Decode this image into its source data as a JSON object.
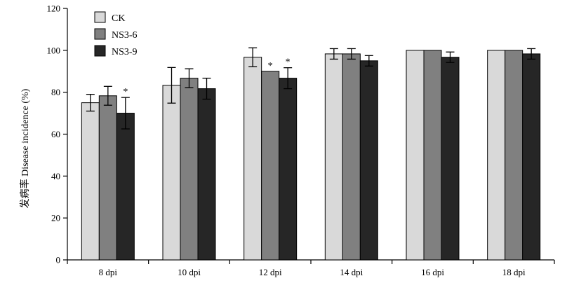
{
  "chart_data": {
    "type": "bar",
    "title": "",
    "xlabel": "",
    "ylabel": "发病率 Disease incidence (%)",
    "ylim": [
      0,
      120
    ],
    "yticks": [
      0,
      20,
      40,
      60,
      80,
      100,
      120
    ],
    "grid": false,
    "legend": "top-left",
    "categories": [
      "8 dpi",
      "10 dpi",
      "12 dpi",
      "14 dpi",
      "16 dpi",
      "18 dpi"
    ],
    "series": [
      {
        "name": "CK",
        "color": "#d9d9d9",
        "values": [
          75,
          83.3,
          96.7,
          98.3,
          100,
          100
        ],
        "errors": [
          4,
          8.5,
          4.5,
          2.5,
          0,
          0
        ],
        "sig": [
          "",
          "",
          "",
          "",
          "",
          ""
        ]
      },
      {
        "name": "NS3-6",
        "color": "#808080",
        "values": [
          78.3,
          86.7,
          90,
          98.3,
          100,
          100
        ],
        "errors": [
          4.5,
          4.5,
          0,
          2.5,
          0,
          0
        ],
        "sig": [
          "",
          "",
          "*",
          "",
          "",
          ""
        ]
      },
      {
        "name": "NS3-9",
        "color": "#262626",
        "values": [
          70,
          81.7,
          86.7,
          95,
          96.7,
          98.3
        ],
        "errors": [
          7.5,
          5,
          5,
          2.5,
          2.5,
          2.5
        ],
        "sig": [
          "*",
          "",
          "*",
          "",
          "",
          ""
        ]
      }
    ]
  }
}
